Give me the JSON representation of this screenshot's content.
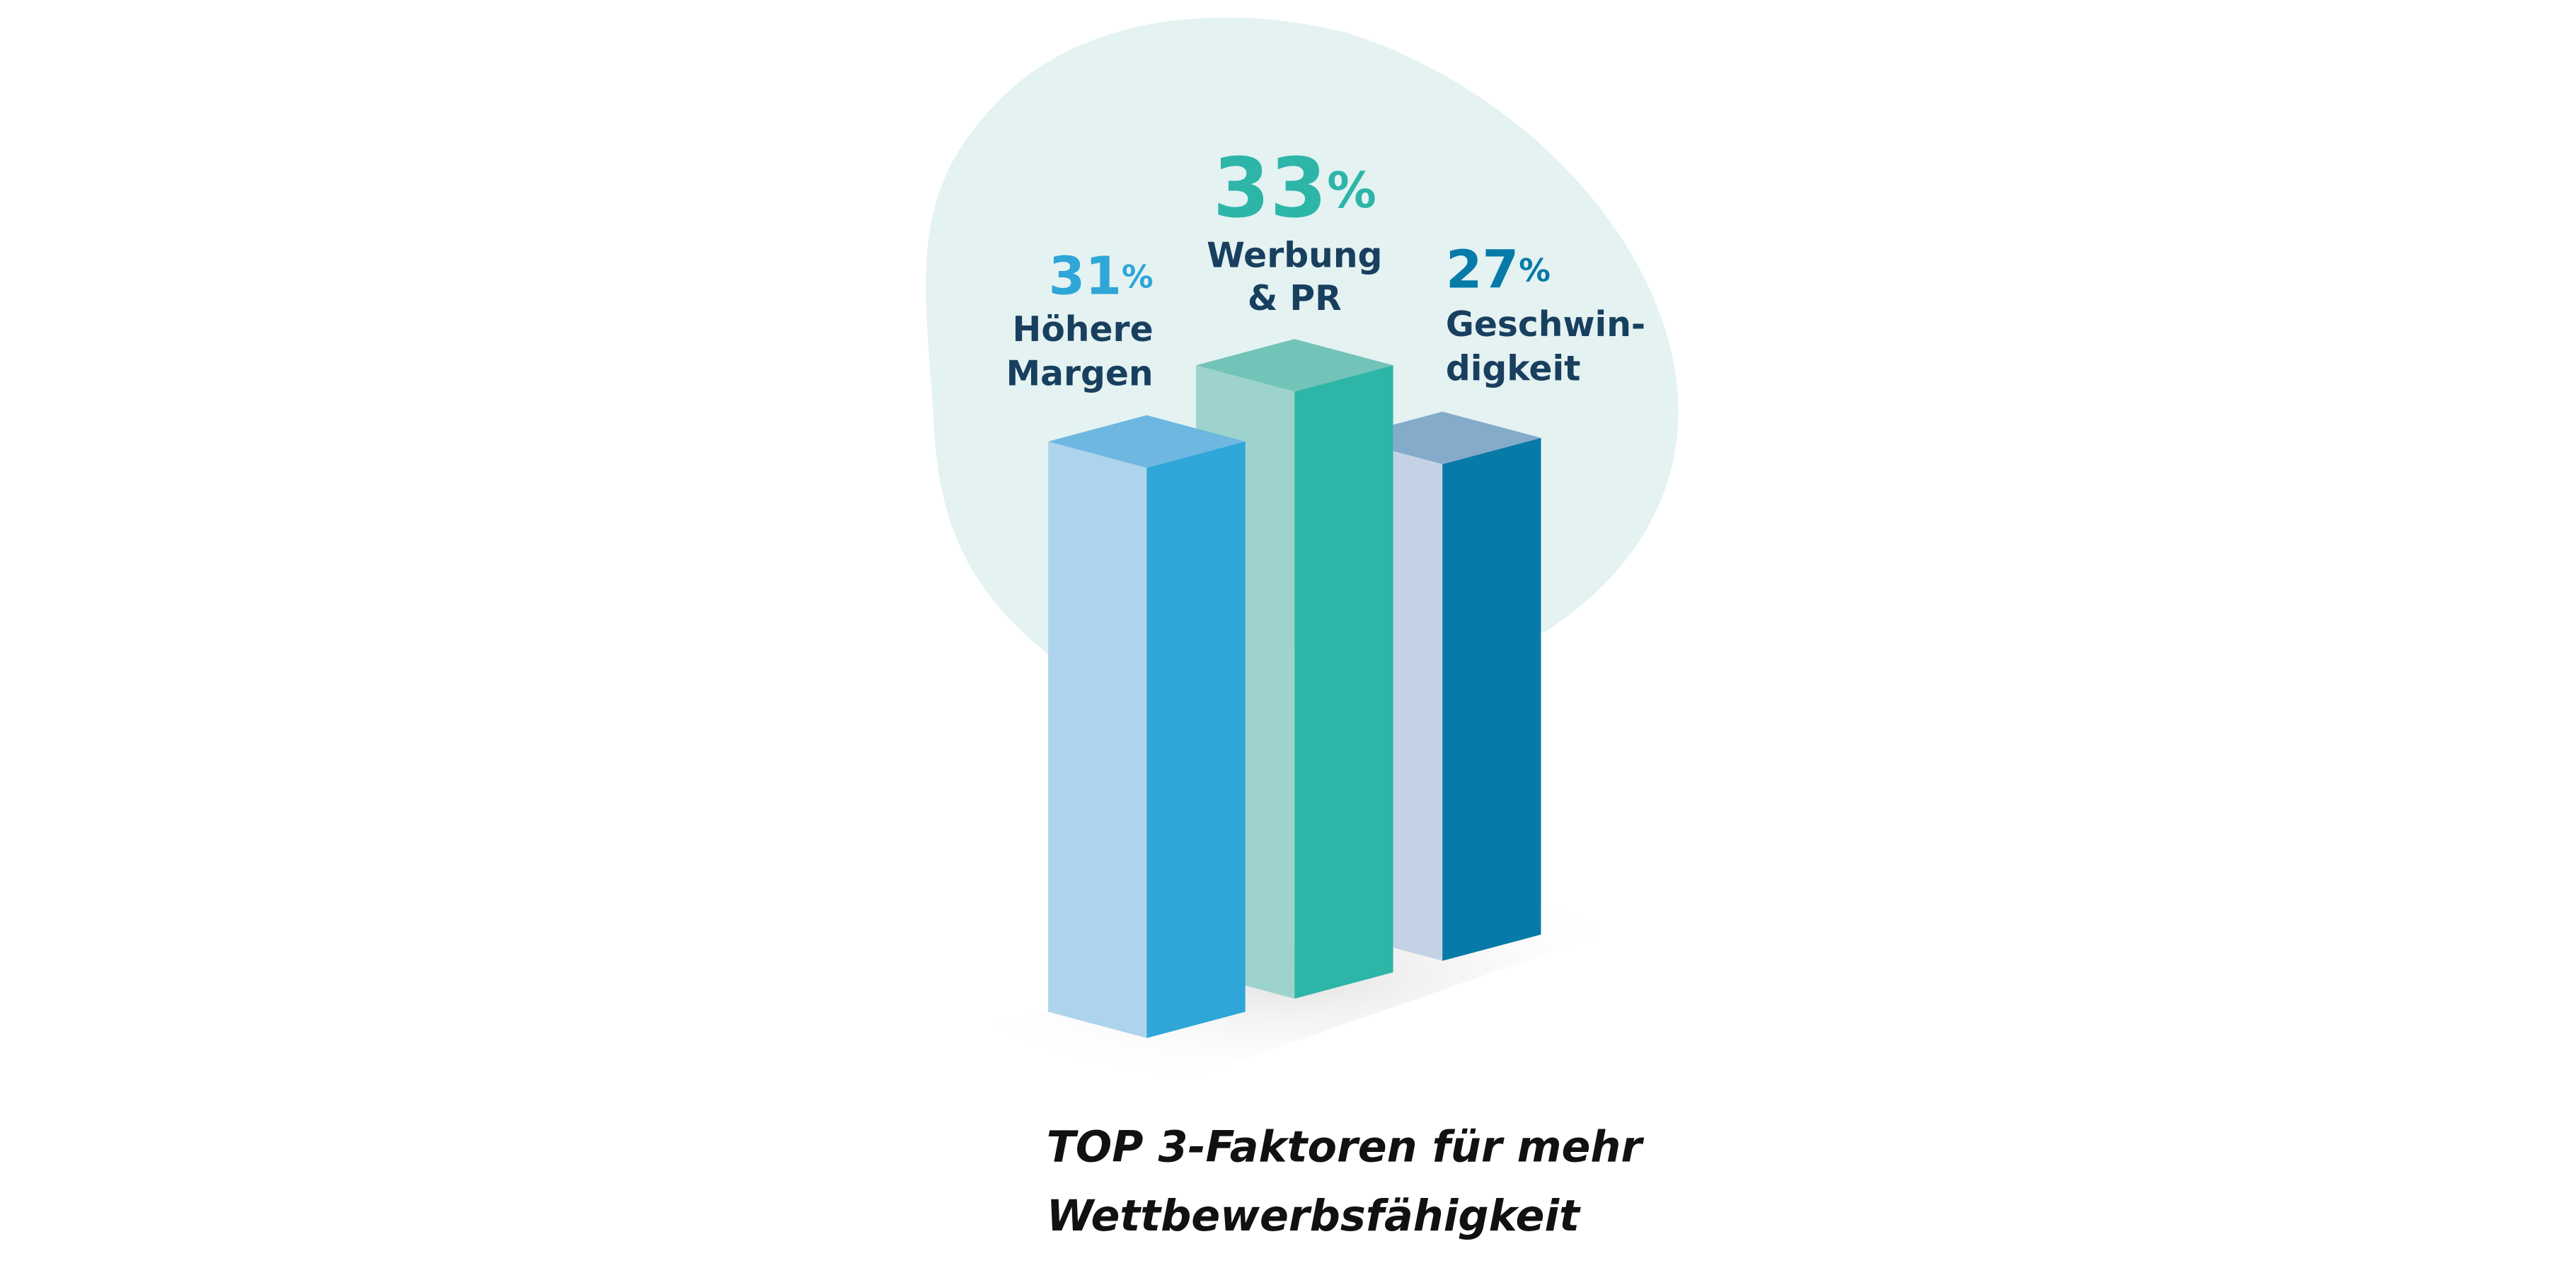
{
  "chart_data": {
    "type": "bar3d",
    "title": [
      "TOP 3-Faktoren für mehr",
      "Wettbewerbsfähigkeit"
    ],
    "categories": [
      [
        "Höhere",
        "Margen"
      ],
      [
        "Werbung",
        "& PR"
      ],
      [
        "Geschwin-",
        "digkeit"
      ]
    ],
    "values": [
      31,
      33,
      27
    ],
    "value_labels": [
      "31%",
      "33%",
      "27%"
    ],
    "colors": [
      {
        "left": "#aed3ec",
        "right": "#2ea6d7",
        "top": "#6db7e0",
        "label": "#2ea6d7"
      },
      {
        "left": "#9dd3cc",
        "right": "#2db5a8",
        "top": "#72c3b8",
        "label": "#2db5a8"
      },
      {
        "left": "#c3d3e5",
        "right": "#077aa8",
        "top": "#85abcb",
        "label": "#077aa8"
      }
    ]
  }
}
